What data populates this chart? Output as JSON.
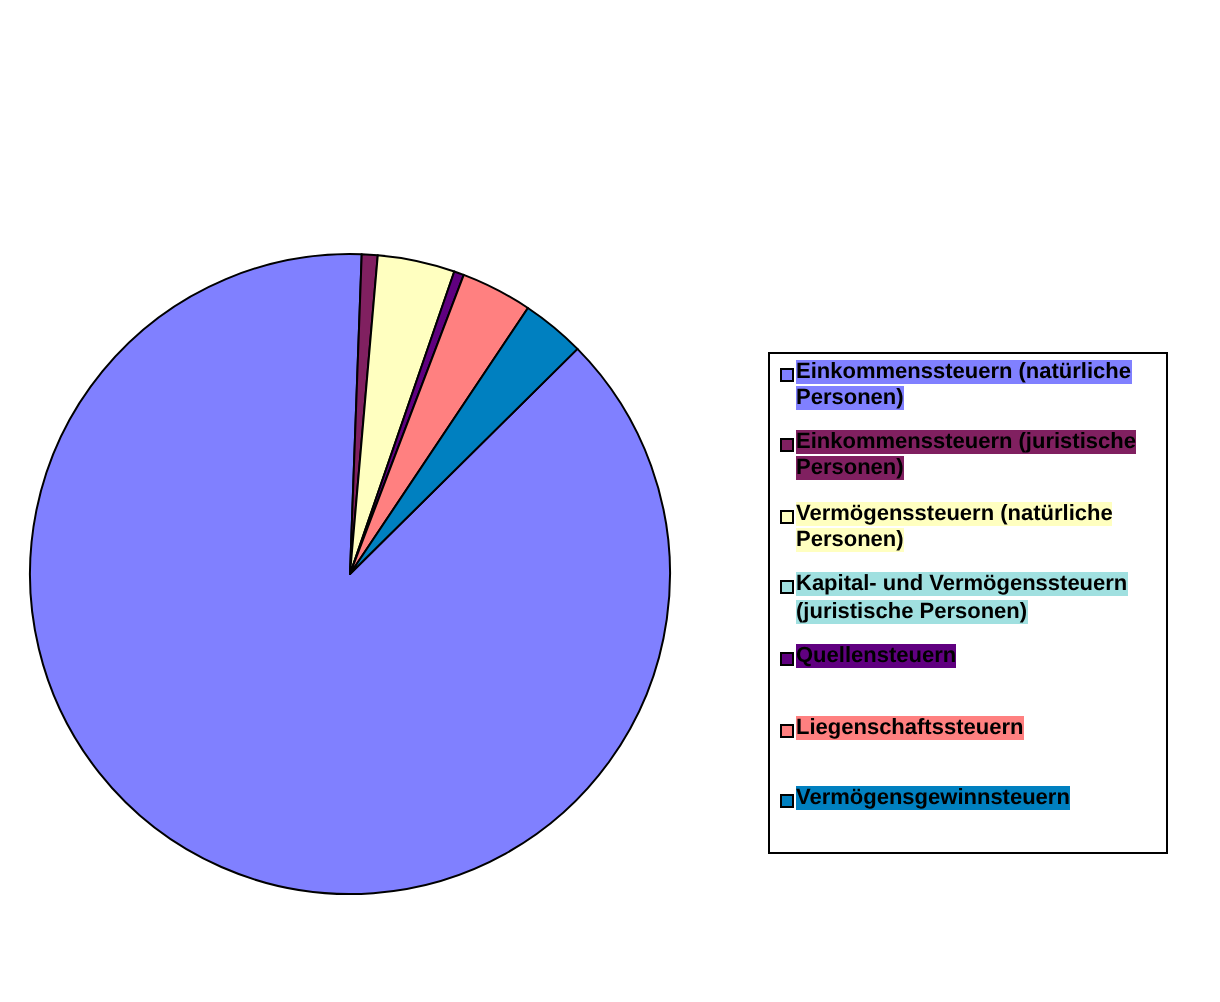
{
  "chart_data": {
    "type": "pie",
    "categories": [
      "Einkommenssteuern (natürliche Personen)",
      "Einkommenssteuern (juristische Personen)",
      "Vermögenssteuern (natürliche Personen)",
      "Kapital- und Vermögenssteuern (juristische Personen)",
      "Quellensteuern",
      "Liegenschaftssteuern",
      "Vermögensgewinnsteuern"
    ],
    "values": [
      88.0,
      0.8,
      3.9,
      0,
      0.5,
      3.6,
      3.2
    ],
    "colors": [
      "#8080ff",
      "#802060",
      "#ffffc0",
      "#a0e0e0",
      "#600080",
      "#ff8080",
      "#0080c0"
    ],
    "legend": "right"
  }
}
